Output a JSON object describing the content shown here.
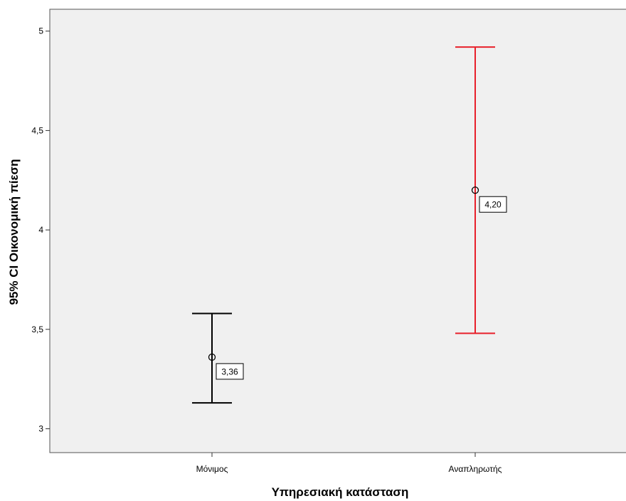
{
  "chart_data": {
    "type": "errorbar",
    "title": "",
    "xlabel": "Υπηρεσιακή κατάσταση",
    "ylabel": "95% CI Οικονομική πίεση",
    "ylim": [
      2.88,
      5.11
    ],
    "yticks": [
      3,
      3.5,
      4,
      4.5,
      5
    ],
    "ytick_labels": [
      "3",
      "3,5",
      "4",
      "4,5",
      "5"
    ],
    "grid": false,
    "categories": [
      "Μόνιμος",
      "Αναπληρωτής"
    ],
    "means": [
      3.36,
      4.2
    ],
    "mean_labels": [
      "3,36",
      "4,20"
    ],
    "lower": [
      3.13,
      3.48
    ],
    "upper": [
      3.58,
      4.92
    ],
    "colors": [
      "#000000",
      "#e8202a"
    ]
  }
}
